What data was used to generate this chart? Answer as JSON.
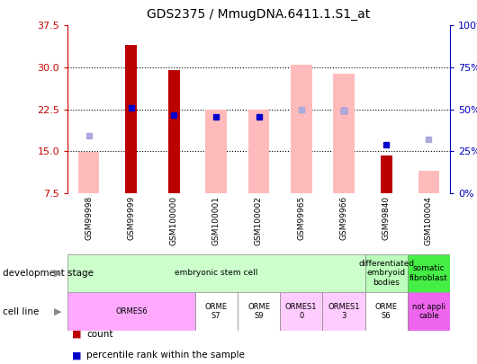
{
  "title": "GDS2375 / MmugDNA.6411.1.S1_at",
  "samples": [
    "GSM99998",
    "GSM99999",
    "GSM100000",
    "GSM100001",
    "GSM100002",
    "GSM99965",
    "GSM99966",
    "GSM99840",
    "GSM100004"
  ],
  "count_values": [
    null,
    34.0,
    29.5,
    null,
    null,
    null,
    null,
    14.2,
    null
  ],
  "count_absent_values": [
    14.8,
    null,
    null,
    22.5,
    22.5,
    null,
    null,
    null,
    11.5
  ],
  "percentile_present": [
    null,
    22.8,
    21.5,
    21.2,
    21.2,
    null,
    22.3,
    16.2,
    null
  ],
  "percentile_absent": [
    17.8,
    null,
    null,
    null,
    null,
    22.5,
    null,
    null,
    17.2
  ],
  "rank_absent_left": [
    null,
    null,
    null,
    null,
    null,
    30.5,
    28.8,
    null,
    null
  ],
  "rank_absent_dot": [
    null,
    null,
    null,
    null,
    null,
    22.5,
    22.3,
    null,
    null
  ],
  "ylim_left": [
    7.5,
    37.5
  ],
  "ylim_right": [
    0,
    100
  ],
  "yticks_left": [
    7.5,
    15.0,
    22.5,
    30.0,
    37.5
  ],
  "yticks_right": [
    0,
    25,
    50,
    75,
    100
  ],
  "gridlines": [
    15.0,
    22.5,
    30.0
  ],
  "bar_color_dark_red": "#bb0000",
  "bar_color_pink": "#ffbbbb",
  "dot_color_dark_blue": "#0000cc",
  "dot_color_light_blue": "#aaaadd",
  "left_axis_color": "#cc0000",
  "right_axis_color": "#0000bb",
  "dev_stage": [
    {
      "cols": [
        0,
        1,
        2,
        3,
        4,
        5,
        6
      ],
      "label": "embryonic stem cell",
      "color": "#ccffcc"
    },
    {
      "cols": [
        7
      ],
      "label": "differentiated\nembryoid\nbodies",
      "color": "#bbffbb"
    },
    {
      "cols": [
        8
      ],
      "label": "somatic\nfibroblast",
      "color": "#44ee44"
    }
  ],
  "cell_line": [
    {
      "cols": [
        0,
        1,
        2
      ],
      "label": "ORMES6",
      "color": "#ffaaff"
    },
    {
      "cols": [
        3
      ],
      "label": "ORME\nS7",
      "color": "#ffffff"
    },
    {
      "cols": [
        4
      ],
      "label": "ORME\nS9",
      "color": "#ffffff"
    },
    {
      "cols": [
        5
      ],
      "label": "ORMES1\n0",
      "color": "#ffccff"
    },
    {
      "cols": [
        6
      ],
      "label": "ORMES1\n3",
      "color": "#ffccff"
    },
    {
      "cols": [
        7
      ],
      "label": "ORME\nS6",
      "color": "#ffffff"
    },
    {
      "cols": [
        8
      ],
      "label": "not appli\ncable",
      "color": "#ee66ee"
    }
  ]
}
